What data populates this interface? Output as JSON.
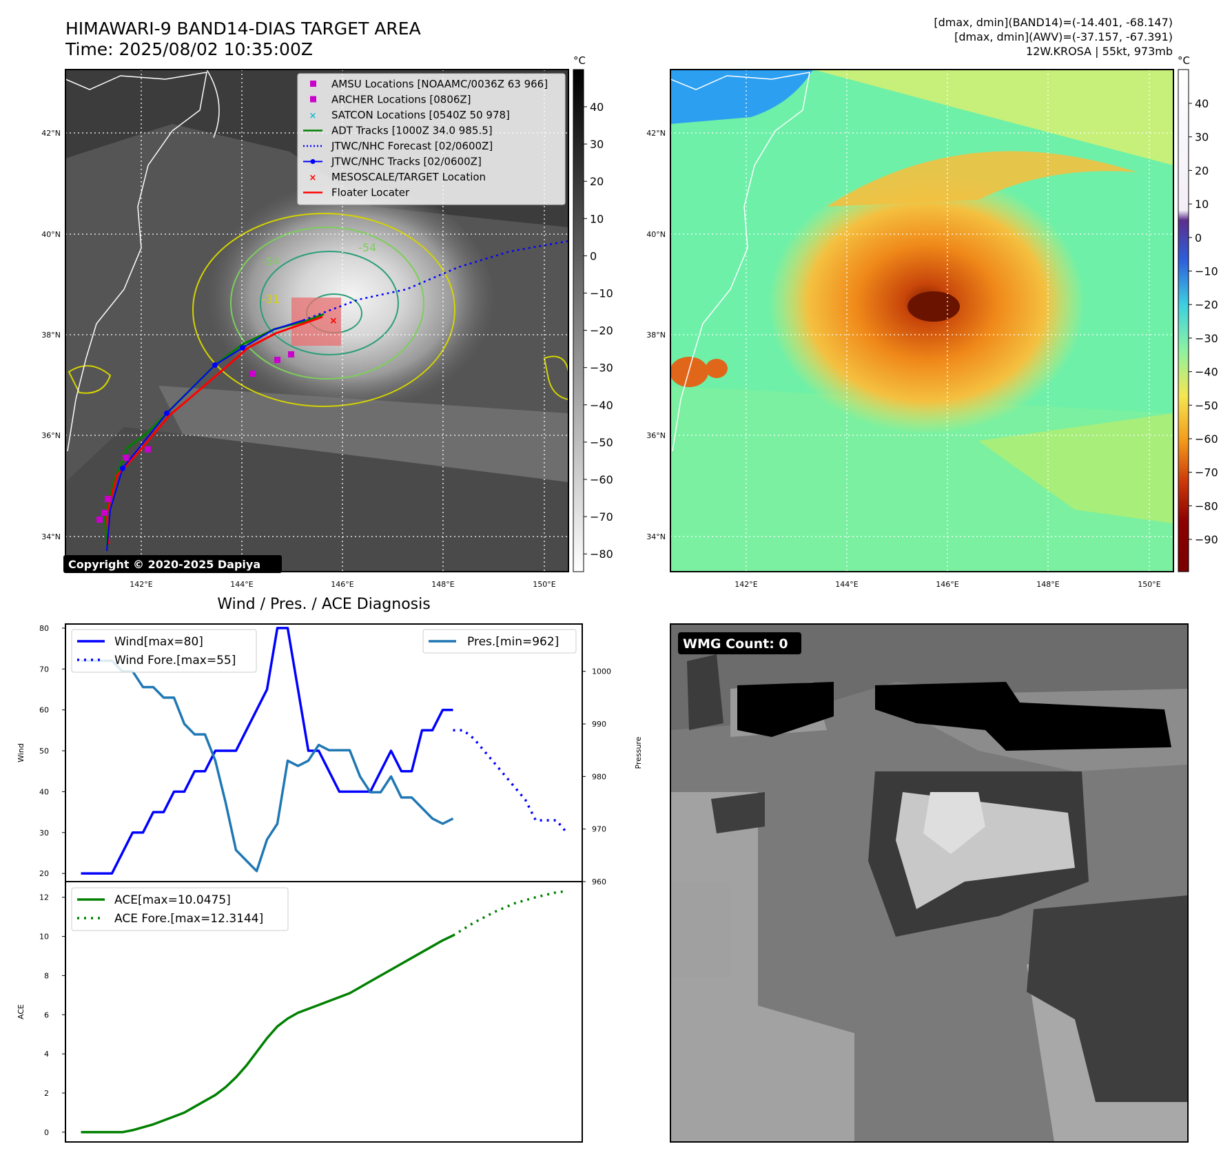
{
  "header": {
    "title_line1": "HIMAWARI-9 BAND14-DIAS TARGET AREA",
    "title_line2": "Time: 2025/08/02 10:35:00Z",
    "right_line1": "[dmax, dmin](BAND14)=(-14.401, -68.147)",
    "right_line2": "[dmax, dmin](AWV)=(-37.157, -67.391)",
    "right_line3": "12W.KROSA | 55kt, 973mb"
  },
  "copyright": "Copyright © 2020-2025 Dapiya",
  "map": {
    "lat_labels": [
      "42°N",
      "40°N",
      "38°N",
      "36°N",
      "34°N"
    ],
    "lon_labels": [
      "142°E",
      "144°E",
      "146°E",
      "148°E",
      "150°E"
    ],
    "legend": [
      {
        "label": "AMSU Locations [NOAAMC/0036Z 63 966]",
        "color": "#cc00cc",
        "marker": "square"
      },
      {
        "label": "ARCHER Locations [0806Z]",
        "color": "#cc00cc",
        "marker": "square"
      },
      {
        "label": "SATCON Locations [0540Z 50 978]",
        "color": "#17becf",
        "marker": "x"
      },
      {
        "label": "ADT Tracks [1000Z 34.0 985.5]",
        "color": "#008000",
        "marker": "line"
      },
      {
        "label": "JTWC/NHC Forecast [02/0600Z]",
        "color": "#0000ff",
        "marker": "dotted"
      },
      {
        "label": "JTWC/NHC Tracks [02/0600Z]",
        "color": "#0000ff",
        "marker": "line-dot"
      },
      {
        "label": "MESOSCALE/TARGET Location",
        "color": "#ff0000",
        "marker": "x"
      },
      {
        "label": "Floater Locater",
        "color": "#ff0000",
        "marker": "line"
      }
    ],
    "contour_labels": [
      "-54",
      "-54",
      "-31"
    ]
  },
  "colorbar_left": {
    "unit": "°C",
    "ticks": [
      "40",
      "30",
      "20",
      "10",
      "0",
      "−10",
      "−20",
      "−30",
      "−40",
      "−50",
      "−60",
      "−70",
      "−80"
    ]
  },
  "colorbar_right": {
    "unit": "°C",
    "ticks": [
      "40",
      "30",
      "20",
      "10",
      "0",
      "−10",
      "−20",
      "−30",
      "−40",
      "−50",
      "−60",
      "−70",
      "−80",
      "−90"
    ]
  },
  "wmg": {
    "label": "WMG Count: 0"
  },
  "chart_data": [
    {
      "type": "line",
      "title": "Wind / Pres. / ACE Diagnosis",
      "ylabel": "Wind",
      "ylabel_right": "Pressure",
      "ylim": [
        18,
        81
      ],
      "ylim_right": [
        960,
        1009
      ],
      "yticks": [
        "20",
        "30",
        "40",
        "50",
        "60",
        "70",
        "80"
      ],
      "yticks_right": [
        "960",
        "970",
        "980",
        "990",
        "1000"
      ],
      "series": [
        {
          "name": "Wind[max=80]",
          "axis": "left",
          "color": "#0000ff",
          "style": "solid",
          "x": [
            0,
            3,
            6,
            8,
            10,
            12,
            14,
            16,
            18,
            20,
            22,
            24,
            26,
            28,
            30,
            32,
            34,
            36,
            38,
            40,
            42,
            44,
            46,
            48,
            50,
            52,
            54,
            56,
            58,
            60,
            62,
            64,
            66,
            68,
            70,
            72
          ],
          "values": [
            20,
            20,
            20,
            25,
            30,
            30,
            35,
            35,
            40,
            40,
            45,
            45,
            50,
            50,
            50,
            55,
            60,
            65,
            80,
            80,
            65,
            50,
            50,
            45,
            40,
            40,
            40,
            40,
            45,
            50,
            45,
            45,
            55,
            55,
            60,
            60
          ]
        },
        {
          "name": "Wind Fore.[max=55]",
          "axis": "left",
          "color": "#0000ff",
          "style": "dotted",
          "x": [
            72,
            74,
            76,
            78,
            80,
            82,
            84,
            86,
            88,
            90,
            92,
            94
          ],
          "values": [
            55,
            55,
            53,
            50,
            47,
            44,
            41,
            38,
            33,
            33,
            33,
            30
          ]
        },
        {
          "name": "Pres.[min=962]",
          "axis": "right",
          "color": "#1f77b4",
          "style": "solid",
          "x": [
            0,
            3,
            6,
            8,
            10,
            12,
            14,
            16,
            18,
            20,
            22,
            24,
            26,
            28,
            30,
            32,
            34,
            36,
            38,
            40,
            42,
            44,
            46,
            48,
            50,
            52,
            54,
            56,
            58,
            60,
            62,
            64,
            66,
            68,
            70,
            72
          ],
          "values": [
            1002,
            1002,
            1002,
            1000,
            1000,
            997,
            997,
            995,
            995,
            990,
            988,
            988,
            983,
            975,
            966,
            964,
            962,
            968,
            971,
            983,
            982,
            983,
            986,
            985,
            985,
            985,
            980,
            977,
            977,
            980,
            976,
            976,
            974,
            972,
            971,
            972
          ]
        }
      ]
    },
    {
      "type": "line",
      "ylabel": "ACE",
      "ylim": [
        -0.5,
        12.8
      ],
      "yticks": [
        "0",
        "2",
        "4",
        "6",
        "8",
        "10",
        "12"
      ],
      "series": [
        {
          "name": "ACE[max=10.0475]",
          "color": "#008000",
          "style": "solid",
          "x": [
            0,
            3,
            6,
            8,
            10,
            12,
            14,
            16,
            18,
            20,
            22,
            24,
            26,
            28,
            30,
            32,
            34,
            36,
            38,
            40,
            42,
            44,
            46,
            48,
            50,
            52,
            54,
            56,
            58,
            60,
            62,
            64,
            66,
            68,
            70,
            72
          ],
          "values": [
            0,
            0,
            0,
            0,
            0.1,
            0.25,
            0.4,
            0.6,
            0.8,
            1.0,
            1.3,
            1.6,
            1.9,
            2.3,
            2.8,
            3.4,
            4.1,
            4.8,
            5.4,
            5.8,
            6.1,
            6.3,
            6.5,
            6.7,
            6.9,
            7.1,
            7.4,
            7.7,
            8.0,
            8.3,
            8.6,
            8.9,
            9.2,
            9.5,
            9.8,
            10.05
          ]
        },
        {
          "name": "ACE Fore.[max=12.3144]",
          "color": "#008000",
          "style": "dotted",
          "x": [
            72,
            76,
            80,
            84,
            88,
            92,
            94
          ],
          "values": [
            10.05,
            10.7,
            11.25,
            11.7,
            12.0,
            12.25,
            12.31
          ]
        }
      ]
    }
  ]
}
